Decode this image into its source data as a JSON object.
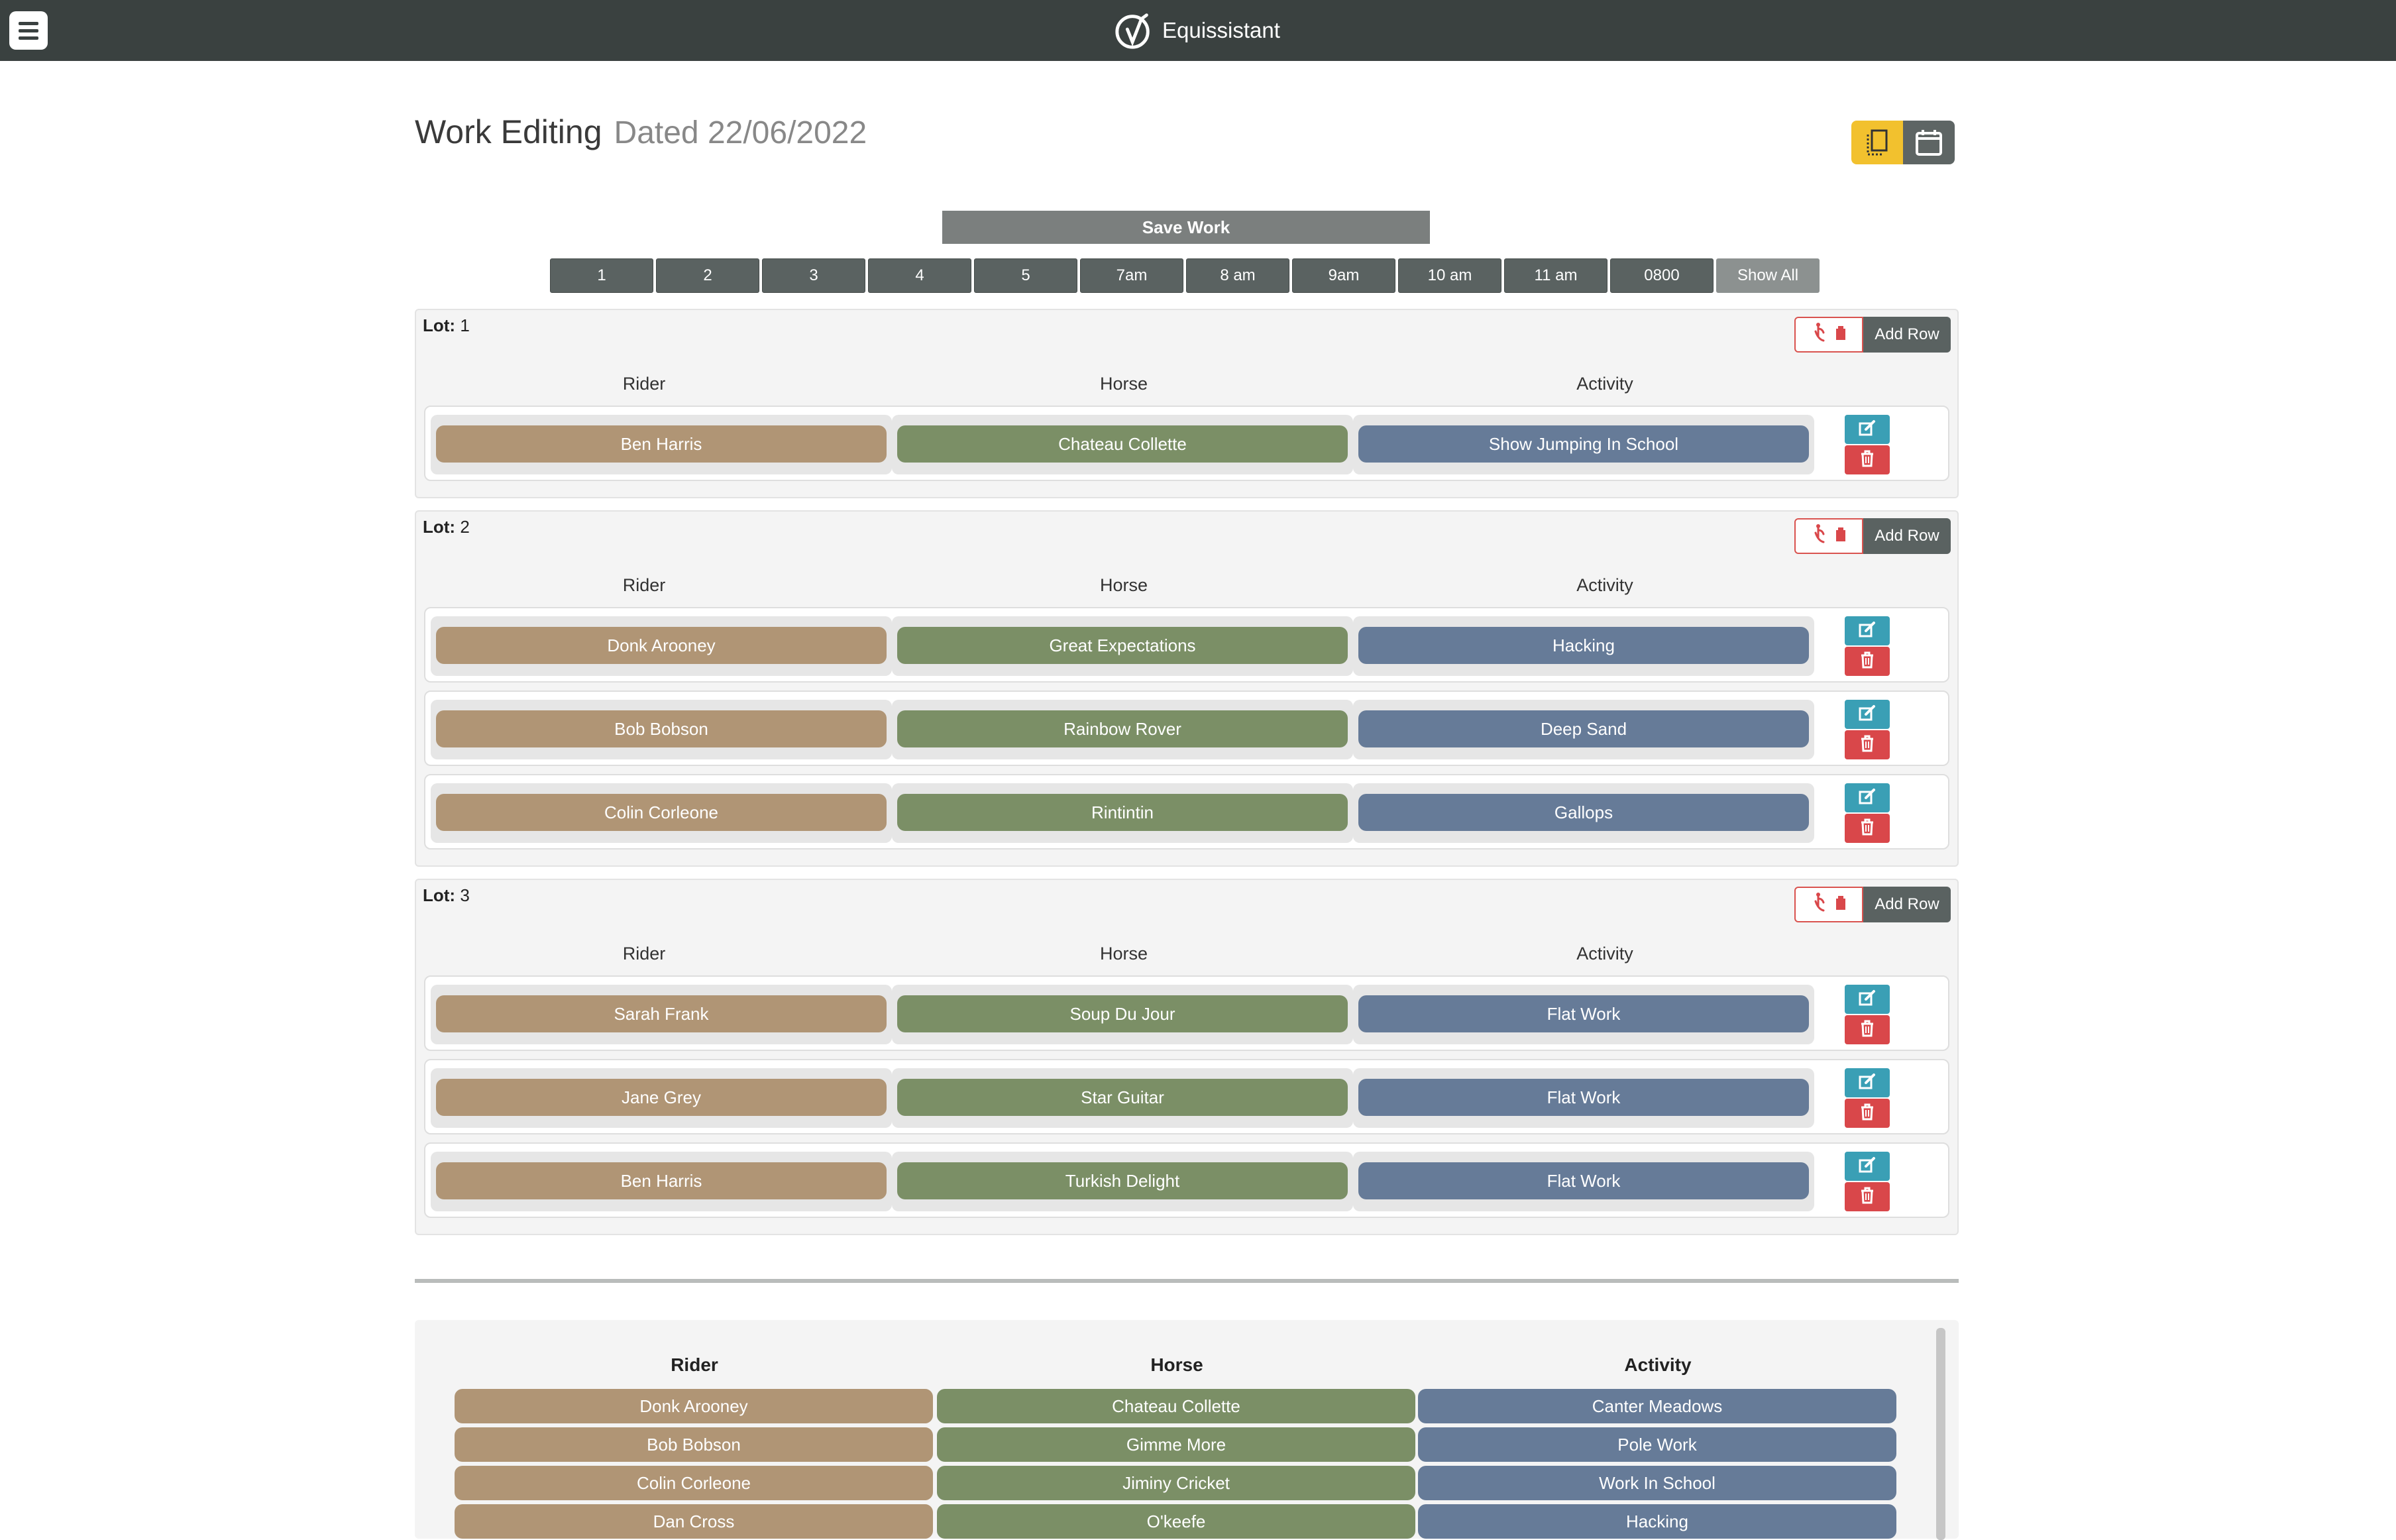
{
  "app": {
    "name": "Equissistant"
  },
  "page": {
    "title": "Work Editing",
    "dated": "Dated 22/06/2022"
  },
  "toolbar": {
    "save_label": "Save Work"
  },
  "filters": [
    "1",
    "2",
    "3",
    "4",
    "5",
    "7am",
    "8 am",
    "9am",
    "10 am",
    "11 am",
    "0800",
    "Show All"
  ],
  "columns": {
    "rider": "Rider",
    "horse": "Horse",
    "activity": "Activity"
  },
  "lot_label": "Lot",
  "add_row_label": "Add Row",
  "lots": [
    {
      "number": "1",
      "rows": [
        {
          "rider": "Ben Harris",
          "horse": "Chateau Collette",
          "activity": "Show Jumping In School"
        }
      ]
    },
    {
      "number": "2",
      "rows": [
        {
          "rider": "Donk Arooney",
          "horse": "Great Expectations",
          "activity": "Hacking"
        },
        {
          "rider": "Bob Bobson",
          "horse": "Rainbow Rover",
          "activity": "Deep Sand"
        },
        {
          "rider": "Colin Corleone",
          "horse": "Rintintin",
          "activity": "Gallops"
        }
      ]
    },
    {
      "number": "3",
      "rows": [
        {
          "rider": "Sarah Frank",
          "horse": "Soup Du Jour",
          "activity": "Flat Work"
        },
        {
          "rider": "Jane Grey",
          "horse": "Star Guitar",
          "activity": "Flat Work"
        },
        {
          "rider": "Ben Harris",
          "horse": "Turkish Delight",
          "activity": "Flat Work"
        }
      ]
    }
  ],
  "pool": {
    "headers": {
      "rider": "Rider",
      "horse": "Horse",
      "activity": "Activity"
    },
    "rows": [
      {
        "rider": "Donk Arooney",
        "horse": "Chateau Collette",
        "activity": "Canter Meadows"
      },
      {
        "rider": "Bob Bobson",
        "horse": "Gimme More",
        "activity": "Pole Work"
      },
      {
        "rider": "Colin Corleone",
        "horse": "Jiminy Cricket",
        "activity": "Work In School"
      },
      {
        "rider": "Dan Cross",
        "horse": "O'keefe",
        "activity": "Hacking"
      }
    ]
  },
  "colors": {
    "topbar": "#3a4140",
    "rider": "#b09575",
    "horse": "#7b8f66",
    "activity": "#667b98",
    "edit": "#3a9fb5",
    "delete": "#d9474a",
    "accent": "#f2c12e"
  }
}
